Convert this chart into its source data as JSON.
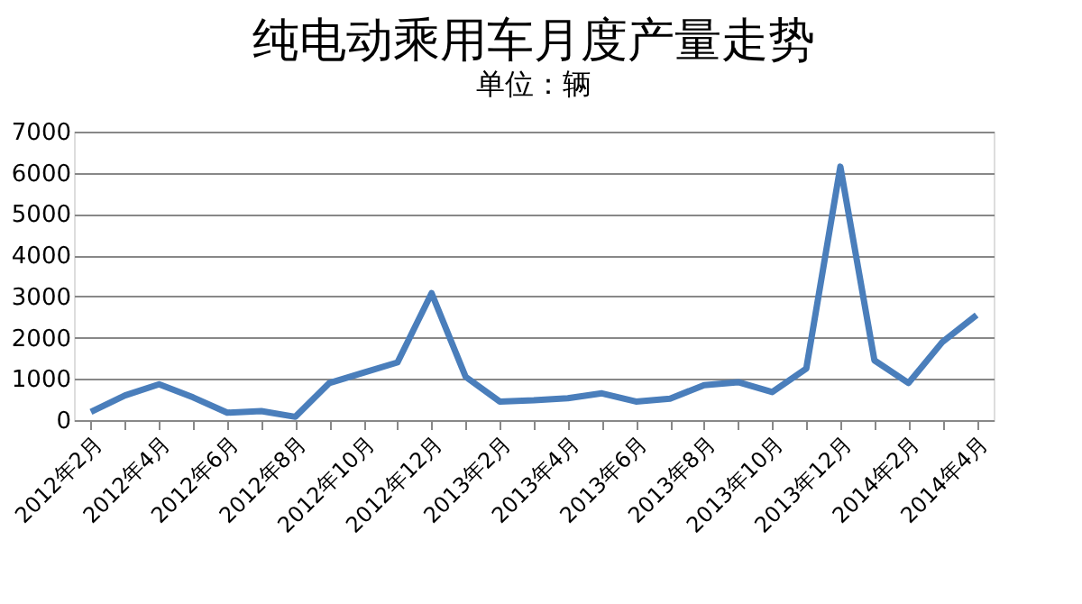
{
  "chart_data": {
    "type": "line",
    "title": "纯电动乘用车月度产量走势",
    "subtitle": "单位：辆",
    "categories": [
      "2012年2月",
      null,
      "2012年4月",
      null,
      "2012年6月",
      null,
      "2012年8月",
      null,
      "2012年10月",
      null,
      "2012年12月",
      null,
      "2013年2月",
      null,
      "2013年4月",
      null,
      "2013年6月",
      null,
      "2013年8月",
      null,
      "2013年10月",
      null,
      "2013年12月",
      null,
      "2014年2月",
      null,
      "2014年4月"
    ],
    "series": [
      {
        "color": "#4a7ebb",
        "values": [
          200,
          600,
          870,
          550,
          180,
          220,
          80,
          900,
          1150,
          1400,
          3080,
          1050,
          450,
          480,
          530,
          650,
          450,
          520,
          850,
          920,
          680,
          1250,
          6150,
          1450,
          900,
          1900,
          2550
        ]
      }
    ],
    "ylim": [
      0,
      7000
    ],
    "yticks": [
      0,
      1000,
      2000,
      3000,
      4000,
      5000,
      6000,
      7000
    ],
    "grid": "y",
    "legend": false,
    "marker": "none",
    "line_style": "solid"
  }
}
